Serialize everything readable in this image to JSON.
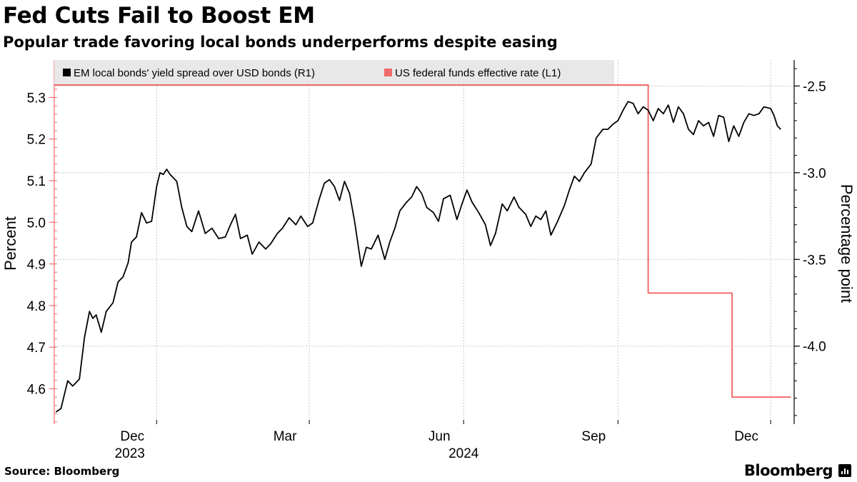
{
  "title": "Fed Cuts Fail to Boost EM",
  "subtitle": "Popular trade favoring local bonds underperforms despite easing",
  "source": "Source: Bloomberg",
  "brand": "Bloomberg",
  "chart_data": {
    "type": "line",
    "title": "Fed Cuts Fail to Boost EM",
    "subtitle": "Popular trade favoring local bonds underperforms despite easing",
    "x_range": [
      "2023-10-01",
      "2024-12-15"
    ],
    "x_ticks": [
      {
        "date": "2023-12-01",
        "label": "Dec"
      },
      {
        "date": "2024-03-01",
        "label": "Mar"
      },
      {
        "date": "2024-06-01",
        "label": "Jun"
      },
      {
        "date": "2024-09-01",
        "label": "Sep"
      },
      {
        "date": "2024-12-01",
        "label": "Dec"
      }
    ],
    "year_labels": [
      {
        "date": "2023-11-15",
        "label": "2023"
      },
      {
        "date": "2024-06-01",
        "label": "2024"
      }
    ],
    "y_left": {
      "label": "Percent",
      "range": [
        4.515,
        5.39
      ],
      "ticks": [
        4.6,
        4.7,
        4.8,
        4.9,
        5.0,
        5.1,
        5.2,
        5.3
      ],
      "tick_labels": [
        "4.6",
        "4.7",
        "4.8",
        "4.9",
        "5.0",
        "5.1",
        "5.2",
        "5.3"
      ]
    },
    "y_right": {
      "label": "Percentage point",
      "range": [
        -4.45,
        -2.35
      ],
      "ticks": [
        -4.0,
        -3.5,
        -3.0,
        -2.5
      ],
      "tick_labels": [
        "-4.0",
        "-3.5",
        "-3.0",
        "-2.5"
      ]
    },
    "legend": {
      "position": "top-left",
      "entries": [
        {
          "label": "EM local bonds' yield spread over USD bonds (R1)",
          "color": "#000000"
        },
        {
          "label": "US federal funds effective rate (L1)",
          "color": "#f26b6b"
        }
      ]
    },
    "grid": true,
    "series": [
      {
        "name": "US federal funds effective rate (L1)",
        "axis": "left",
        "color": "#f26b6b",
        "interpolation": "step",
        "points": [
          [
            "2023-10-01",
            5.33
          ],
          [
            "2024-09-19",
            5.33
          ],
          [
            "2024-09-19",
            4.83
          ],
          [
            "2024-11-08",
            4.83
          ],
          [
            "2024-11-08",
            4.58
          ],
          [
            "2024-12-13",
            4.58
          ]
        ]
      },
      {
        "name": "EM local bonds' yield spread over USD bonds (R1)",
        "axis": "right",
        "color": "#000000",
        "interpolation": "linear",
        "points": [
          [
            "2023-10-02",
            -4.38
          ],
          [
            "2023-10-05",
            -4.36
          ],
          [
            "2023-10-09",
            -4.2
          ],
          [
            "2023-10-12",
            -4.23
          ],
          [
            "2023-10-16",
            -4.19
          ],
          [
            "2023-10-19",
            -3.95
          ],
          [
            "2023-10-22",
            -3.8
          ],
          [
            "2023-10-24",
            -3.84
          ],
          [
            "2023-10-26",
            -3.82
          ],
          [
            "2023-10-29",
            -3.92
          ],
          [
            "2023-11-01",
            -3.8
          ],
          [
            "2023-11-05",
            -3.75
          ],
          [
            "2023-11-08",
            -3.63
          ],
          [
            "2023-11-11",
            -3.6
          ],
          [
            "2023-11-14",
            -3.52
          ],
          [
            "2023-11-16",
            -3.4
          ],
          [
            "2023-11-19",
            -3.37
          ],
          [
            "2023-11-22",
            -3.23
          ],
          [
            "2023-11-25",
            -3.29
          ],
          [
            "2023-11-28",
            -3.28
          ],
          [
            "2023-12-01",
            -3.08
          ],
          [
            "2023-12-03",
            -3.0
          ],
          [
            "2023-12-05",
            -3.01
          ],
          [
            "2023-12-07",
            -2.98
          ],
          [
            "2023-12-09",
            -3.01
          ],
          [
            "2023-12-11",
            -3.03
          ],
          [
            "2023-12-13",
            -3.05
          ],
          [
            "2023-12-16",
            -3.2
          ],
          [
            "2023-12-19",
            -3.31
          ],
          [
            "2023-12-22",
            -3.34
          ],
          [
            "2023-12-26",
            -3.22
          ],
          [
            "2023-12-30",
            -3.35
          ],
          [
            "2024-01-03",
            -3.32
          ],
          [
            "2024-01-07",
            -3.38
          ],
          [
            "2024-01-11",
            -3.37
          ],
          [
            "2024-01-14",
            -3.3
          ],
          [
            "2024-01-17",
            -3.24
          ],
          [
            "2024-01-20",
            -3.38
          ],
          [
            "2024-01-24",
            -3.36
          ],
          [
            "2024-01-27",
            -3.47
          ],
          [
            "2024-01-31",
            -3.4
          ],
          [
            "2024-02-04",
            -3.44
          ],
          [
            "2024-02-07",
            -3.41
          ],
          [
            "2024-02-11",
            -3.35
          ],
          [
            "2024-02-14",
            -3.32
          ],
          [
            "2024-02-18",
            -3.26
          ],
          [
            "2024-02-22",
            -3.3
          ],
          [
            "2024-02-25",
            -3.25
          ],
          [
            "2024-02-29",
            -3.31
          ],
          [
            "2024-03-03",
            -3.29
          ],
          [
            "2024-03-07",
            -3.15
          ],
          [
            "2024-03-10",
            -3.06
          ],
          [
            "2024-03-13",
            -3.04
          ],
          [
            "2024-03-16",
            -3.08
          ],
          [
            "2024-03-19",
            -3.16
          ],
          [
            "2024-03-22",
            -3.05
          ],
          [
            "2024-03-25",
            -3.12
          ],
          [
            "2024-03-28",
            -3.28
          ],
          [
            "2024-04-01",
            -3.54
          ],
          [
            "2024-04-04",
            -3.43
          ],
          [
            "2024-04-07",
            -3.44
          ],
          [
            "2024-04-11",
            -3.36
          ],
          [
            "2024-04-15",
            -3.5
          ],
          [
            "2024-04-18",
            -3.4
          ],
          [
            "2024-04-21",
            -3.32
          ],
          [
            "2024-04-24",
            -3.22
          ],
          [
            "2024-04-28",
            -3.17
          ],
          [
            "2024-05-01",
            -3.14
          ],
          [
            "2024-05-04",
            -3.08
          ],
          [
            "2024-05-07",
            -3.12
          ],
          [
            "2024-05-10",
            -3.2
          ],
          [
            "2024-05-14",
            -3.23
          ],
          [
            "2024-05-17",
            -3.28
          ],
          [
            "2024-05-20",
            -3.15
          ],
          [
            "2024-05-24",
            -3.13
          ],
          [
            "2024-05-28",
            -3.27
          ],
          [
            "2024-05-31",
            -3.18
          ],
          [
            "2024-06-03",
            -3.1
          ],
          [
            "2024-06-06",
            -3.17
          ],
          [
            "2024-06-10",
            -3.23
          ],
          [
            "2024-06-14",
            -3.3
          ],
          [
            "2024-06-17",
            -3.42
          ],
          [
            "2024-06-20",
            -3.35
          ],
          [
            "2024-06-24",
            -3.18
          ],
          [
            "2024-06-27",
            -3.22
          ],
          [
            "2024-07-01",
            -3.14
          ],
          [
            "2024-07-04",
            -3.2
          ],
          [
            "2024-07-08",
            -3.24
          ],
          [
            "2024-07-11",
            -3.31
          ],
          [
            "2024-07-14",
            -3.25
          ],
          [
            "2024-07-17",
            -3.27
          ],
          [
            "2024-07-20",
            -3.22
          ],
          [
            "2024-07-23",
            -3.36
          ],
          [
            "2024-07-27",
            -3.28
          ],
          [
            "2024-07-31",
            -3.19
          ],
          [
            "2024-08-03",
            -3.1
          ],
          [
            "2024-08-06",
            -3.02
          ],
          [
            "2024-08-09",
            -3.05
          ],
          [
            "2024-08-12",
            -3.0
          ],
          [
            "2024-08-16",
            -2.95
          ],
          [
            "2024-08-19",
            -2.8
          ],
          [
            "2024-08-23",
            -2.75
          ],
          [
            "2024-08-26",
            -2.75
          ],
          [
            "2024-08-29",
            -2.72
          ],
          [
            "2024-09-01",
            -2.7
          ],
          [
            "2024-09-04",
            -2.64
          ],
          [
            "2024-09-07",
            -2.59
          ],
          [
            "2024-09-10",
            -2.6
          ],
          [
            "2024-09-13",
            -2.66
          ],
          [
            "2024-09-16",
            -2.62
          ],
          [
            "2024-09-19",
            -2.64
          ],
          [
            "2024-09-22",
            -2.7
          ],
          [
            "2024-09-25",
            -2.63
          ],
          [
            "2024-09-28",
            -2.66
          ],
          [
            "2024-10-01",
            -2.61
          ],
          [
            "2024-10-04",
            -2.71
          ],
          [
            "2024-10-07",
            -2.62
          ],
          [
            "2024-10-10",
            -2.66
          ],
          [
            "2024-10-13",
            -2.75
          ],
          [
            "2024-10-16",
            -2.78
          ],
          [
            "2024-10-19",
            -2.7
          ],
          [
            "2024-10-22",
            -2.73
          ],
          [
            "2024-10-25",
            -2.71
          ],
          [
            "2024-10-28",
            -2.79
          ],
          [
            "2024-10-31",
            -2.67
          ],
          [
            "2024-11-03",
            -2.68
          ],
          [
            "2024-11-06",
            -2.82
          ],
          [
            "2024-11-09",
            -2.73
          ],
          [
            "2024-11-12",
            -2.79
          ],
          [
            "2024-11-15",
            -2.71
          ],
          [
            "2024-11-18",
            -2.66
          ],
          [
            "2024-11-21",
            -2.67
          ],
          [
            "2024-11-24",
            -2.66
          ],
          [
            "2024-11-27",
            -2.62
          ],
          [
            "2024-12-01",
            -2.63
          ],
          [
            "2024-12-03",
            -2.67
          ],
          [
            "2024-12-05",
            -2.73
          ],
          [
            "2024-12-07",
            -2.75
          ]
        ]
      }
    ]
  }
}
